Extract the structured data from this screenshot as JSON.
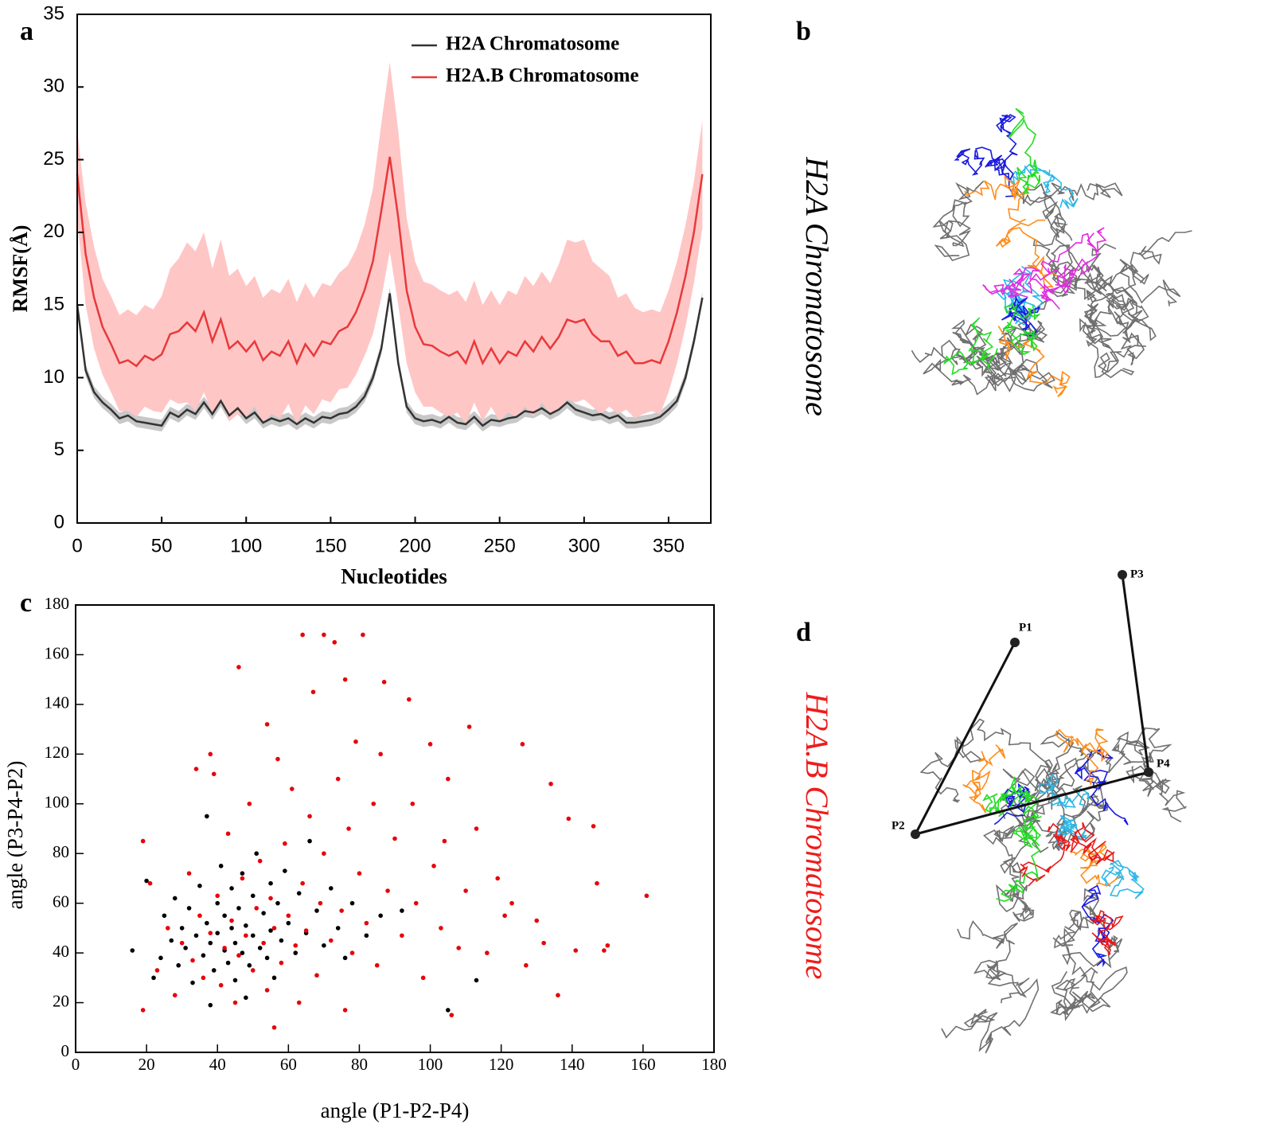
{
  "chart_data": [
    {
      "type": "line",
      "panel_label": "a",
      "xlabel": "Nucleotides",
      "ylabel": "RMSF(Å)",
      "xlim": [
        0,
        375
      ],
      "ylim": [
        0,
        35
      ],
      "xticks": [
        0,
        50,
        100,
        150,
        200,
        250,
        300,
        350
      ],
      "yticks": [
        0,
        5,
        10,
        15,
        20,
        25,
        30,
        35
      ],
      "x": [
        0,
        5,
        10,
        15,
        20,
        25,
        30,
        35,
        40,
        45,
        50,
        55,
        60,
        65,
        70,
        75,
        80,
        85,
        90,
        95,
        100,
        105,
        110,
        115,
        120,
        125,
        130,
        135,
        140,
        145,
        150,
        155,
        160,
        165,
        170,
        175,
        180,
        185,
        190,
        195,
        200,
        205,
        210,
        215,
        220,
        225,
        230,
        235,
        240,
        245,
        250,
        255,
        260,
        265,
        270,
        275,
        280,
        285,
        290,
        295,
        300,
        305,
        310,
        315,
        320,
        325,
        330,
        335,
        340,
        345,
        350,
        355,
        360,
        365,
        370
      ],
      "series": [
        {
          "name": "H2A Chromatosome",
          "color": "#333333",
          "band_color": "#c8c8c8",
          "values": [
            15,
            10.5,
            9,
            8.3,
            7.8,
            7.2,
            7.4,
            7,
            6.9,
            6.8,
            6.7,
            7.6,
            7.3,
            7.8,
            7.5,
            8.3,
            7.5,
            8.4,
            7.4,
            7.9,
            7.2,
            7.6,
            6.9,
            7.2,
            7,
            7.2,
            6.8,
            7.2,
            6.9,
            7.3,
            7.2,
            7.5,
            7.6,
            8,
            8.7,
            10,
            12,
            15.8,
            11,
            8,
            7.2,
            7,
            7.1,
            6.9,
            7.3,
            6.9,
            6.8,
            7.3,
            6.7,
            7.1,
            7,
            7.2,
            7.3,
            7.7,
            7.6,
            7.9,
            7.5,
            7.8,
            8.3,
            7.8,
            7.6,
            7.4,
            7.5,
            7.2,
            7.4,
            6.9,
            6.9,
            7,
            7.1,
            7.3,
            7.8,
            8.4,
            10,
            12.5,
            15.5
          ],
          "error": [
            0.4,
            0.4,
            0.4,
            0.4,
            0.4,
            0.4,
            0.4,
            0.4,
            0.4,
            0.4,
            0.4,
            0.4,
            0.4,
            0.4,
            0.4,
            0.4,
            0.4,
            0.4,
            0.4,
            0.4,
            0.4,
            0.4,
            0.4,
            0.4,
            0.4,
            0.4,
            0.4,
            0.4,
            0.4,
            0.4,
            0.4,
            0.4,
            0.4,
            0.4,
            0.4,
            0.4,
            0.4,
            0.4,
            0.4,
            0.4,
            0.4,
            0.4,
            0.4,
            0.4,
            0.4,
            0.4,
            0.4,
            0.4,
            0.4,
            0.4,
            0.4,
            0.4,
            0.4,
            0.4,
            0.4,
            0.4,
            0.4,
            0.4,
            0.4,
            0.4,
            0.4,
            0.4,
            0.4,
            0.4,
            0.4,
            0.4,
            0.4,
            0.4,
            0.4,
            0.4,
            0.4,
            0.4,
            0.4,
            0.4,
            0.4
          ]
        },
        {
          "name": "H2A.B Chromatosome",
          "color": "#e8393a",
          "band_color": "#ffc6c6",
          "values": [
            24,
            18.5,
            15.5,
            13.5,
            12.3,
            11,
            11.2,
            10.8,
            11.5,
            11.2,
            11.6,
            13,
            13.2,
            13.8,
            13.2,
            14.5,
            12.5,
            14,
            12,
            12.5,
            11.8,
            12.5,
            11.2,
            11.8,
            11.5,
            12.5,
            11,
            12.3,
            11.5,
            12.5,
            12.3,
            13.2,
            13.5,
            14.5,
            16,
            18,
            21.5,
            25.2,
            21,
            16,
            13.5,
            12.3,
            12.2,
            11.8,
            11.5,
            11.8,
            11,
            12.5,
            11,
            12,
            11,
            11.8,
            11.5,
            12.5,
            11.8,
            12.8,
            12,
            12.8,
            14,
            13.8,
            14,
            13,
            12.5,
            12.5,
            11.5,
            11.8,
            11,
            11,
            11.2,
            11,
            12.5,
            14.5,
            17,
            20,
            24
          ],
          "error": [
            3,
            3.5,
            3.5,
            3.3,
            3.3,
            3.3,
            3.5,
            3.5,
            3.5,
            3.5,
            4,
            4.5,
            5,
            5.5,
            5.5,
            5.5,
            5,
            5.5,
            5,
            5,
            4.5,
            4.5,
            4.3,
            4.3,
            4.3,
            4.3,
            4.2,
            4.2,
            4,
            4,
            4,
            4,
            4.2,
            4.3,
            4.5,
            5,
            6,
            6.5,
            6,
            5,
            4.5,
            4.3,
            4.2,
            4.2,
            4.2,
            4.2,
            4.2,
            4.2,
            4,
            4,
            4,
            4.2,
            4.2,
            4.5,
            4.5,
            4.5,
            4.5,
            5,
            5.5,
            5.5,
            5.5,
            5,
            5,
            4.5,
            4,
            4,
            3.8,
            3.5,
            3.5,
            3.5,
            3.5,
            3.5,
            3.5,
            3.5,
            3.7
          ]
        }
      ]
    },
    {
      "type": "scatter",
      "panel_label": "c",
      "xlabel": "angle (P1-P2-P4)",
      "ylabel": "angle (P3-P4-P2)",
      "xlim": [
        0,
        180
      ],
      "ylim": [
        0,
        180
      ],
      "xticks": [
        0,
        20,
        40,
        60,
        80,
        100,
        120,
        140,
        160,
        180
      ],
      "yticks": [
        0,
        20,
        40,
        60,
        80,
        100,
        120,
        140,
        160,
        180
      ],
      "series": [
        {
          "color": "#000000",
          "x": [
            16,
            20,
            22,
            24,
            25,
            27,
            28,
            29,
            30,
            31,
            32,
            33,
            34,
            35,
            36,
            37,
            37,
            38,
            39,
            40,
            40,
            41,
            42,
            42,
            43,
            44,
            44,
            45,
            45,
            46,
            47,
            47,
            48,
            49,
            50,
            50,
            51,
            52,
            53,
            54,
            55,
            55,
            56,
            57,
            58,
            59,
            60,
            62,
            63,
            65,
            66,
            68,
            70,
            72,
            74,
            76,
            78,
            82,
            86,
            92,
            105,
            38,
            48,
            113
          ],
          "y": [
            41,
            69,
            30,
            38,
            55,
            45,
            62,
            35,
            50,
            42,
            58,
            28,
            47,
            67,
            39,
            52,
            95,
            44,
            33,
            60,
            48,
            75,
            41,
            55,
            36,
            66,
            50,
            29,
            44,
            58,
            72,
            40,
            51,
            35,
            63,
            47,
            80,
            42,
            56,
            38,
            68,
            49,
            30,
            60,
            45,
            73,
            52,
            40,
            64,
            48,
            85,
            57,
            43,
            66,
            50,
            38,
            60,
            47,
            55,
            57,
            17,
            19,
            22,
            29
          ]
        },
        {
          "color": "#e8000b",
          "x": [
            19,
            19,
            21,
            23,
            26,
            28,
            30,
            32,
            33,
            34,
            35,
            36,
            38,
            38,
            39,
            40,
            41,
            42,
            43,
            44,
            45,
            46,
            46,
            47,
            48,
            49,
            50,
            51,
            52,
            53,
            54,
            54,
            55,
            56,
            56,
            57,
            58,
            59,
            60,
            61,
            62,
            63,
            64,
            64,
            65,
            66,
            67,
            68,
            69,
            70,
            70,
            72,
            73,
            74,
            75,
            76,
            76,
            77,
            78,
            79,
            80,
            81,
            82,
            84,
            85,
            86,
            87,
            88,
            90,
            92,
            94,
            95,
            96,
            98,
            100,
            101,
            103,
            104,
            105,
            106,
            108,
            110,
            111,
            113,
            116,
            119,
            121,
            123,
            126,
            127,
            130,
            132,
            134,
            136,
            139,
            141,
            146,
            147,
            149,
            150,
            161
          ],
          "y": [
            17,
            85,
            68,
            33,
            50,
            23,
            44,
            72,
            37,
            114,
            55,
            30,
            120,
            48,
            112,
            63,
            27,
            42,
            88,
            53,
            20,
            155,
            39,
            70,
            47,
            100,
            33,
            58,
            77,
            44,
            132,
            25,
            62,
            10,
            50,
            118,
            36,
            84,
            55,
            106,
            43,
            20,
            168,
            68,
            49,
            95,
            145,
            31,
            60,
            168,
            80,
            45,
            165,
            110,
            57,
            150,
            17,
            90,
            40,
            125,
            72,
            168,
            52,
            100,
            35,
            120,
            149,
            65,
            86,
            47,
            142,
            100,
            60,
            30,
            124,
            75,
            50,
            85,
            110,
            15,
            42,
            65,
            131,
            90,
            40,
            70,
            55,
            60,
            124,
            35,
            53,
            44,
            108,
            23,
            94,
            41,
            91,
            68,
            41,
            43,
            63
          ]
        }
      ]
    }
  ],
  "structures": [
    {
      "panel_label": "b",
      "title": "H2A Chromatosome"
    },
    {
      "panel_label": "d",
      "title": "H2A.B Chromatosome",
      "points": [
        "P1",
        "P2",
        "P3",
        "P4"
      ]
    }
  ]
}
